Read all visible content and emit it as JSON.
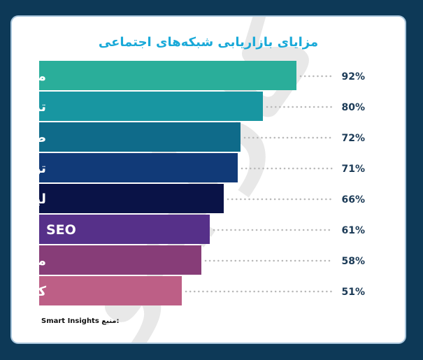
{
  "title": "مزایای بازاریابی شبکه‌های اجتماعی",
  "source": {
    "label": "منبع:",
    "name": "Smart Insights"
  },
  "watermark_text": "کارلینو",
  "chart_data": {
    "type": "bar",
    "orientation": "horizontal",
    "title": "مزایای بازاریابی شبکه‌های اجتماعی",
    "categories": [
      "مواجهه",
      "ترافیک وب سایت",
      "طرفداران وفادار",
      "توجه مخاطبان",
      "لیدها",
      "SEO",
      "مشارکت",
      "کاهش هزینه‌ها"
    ],
    "values": [
      92,
      80,
      72,
      71,
      66,
      61,
      58,
      51
    ],
    "value_labels": [
      "92%",
      "80%",
      "72%",
      "71%",
      "66%",
      "61%",
      "58%",
      "51%"
    ],
    "colors": [
      "#2aae9a",
      "#1896a1",
      "#0f6b8a",
      "#113a78",
      "#0a1347",
      "#563089",
      "#873d78",
      "#bd5f86"
    ],
    "xlim": [
      0,
      100
    ],
    "grid": false,
    "legend": "none"
  }
}
